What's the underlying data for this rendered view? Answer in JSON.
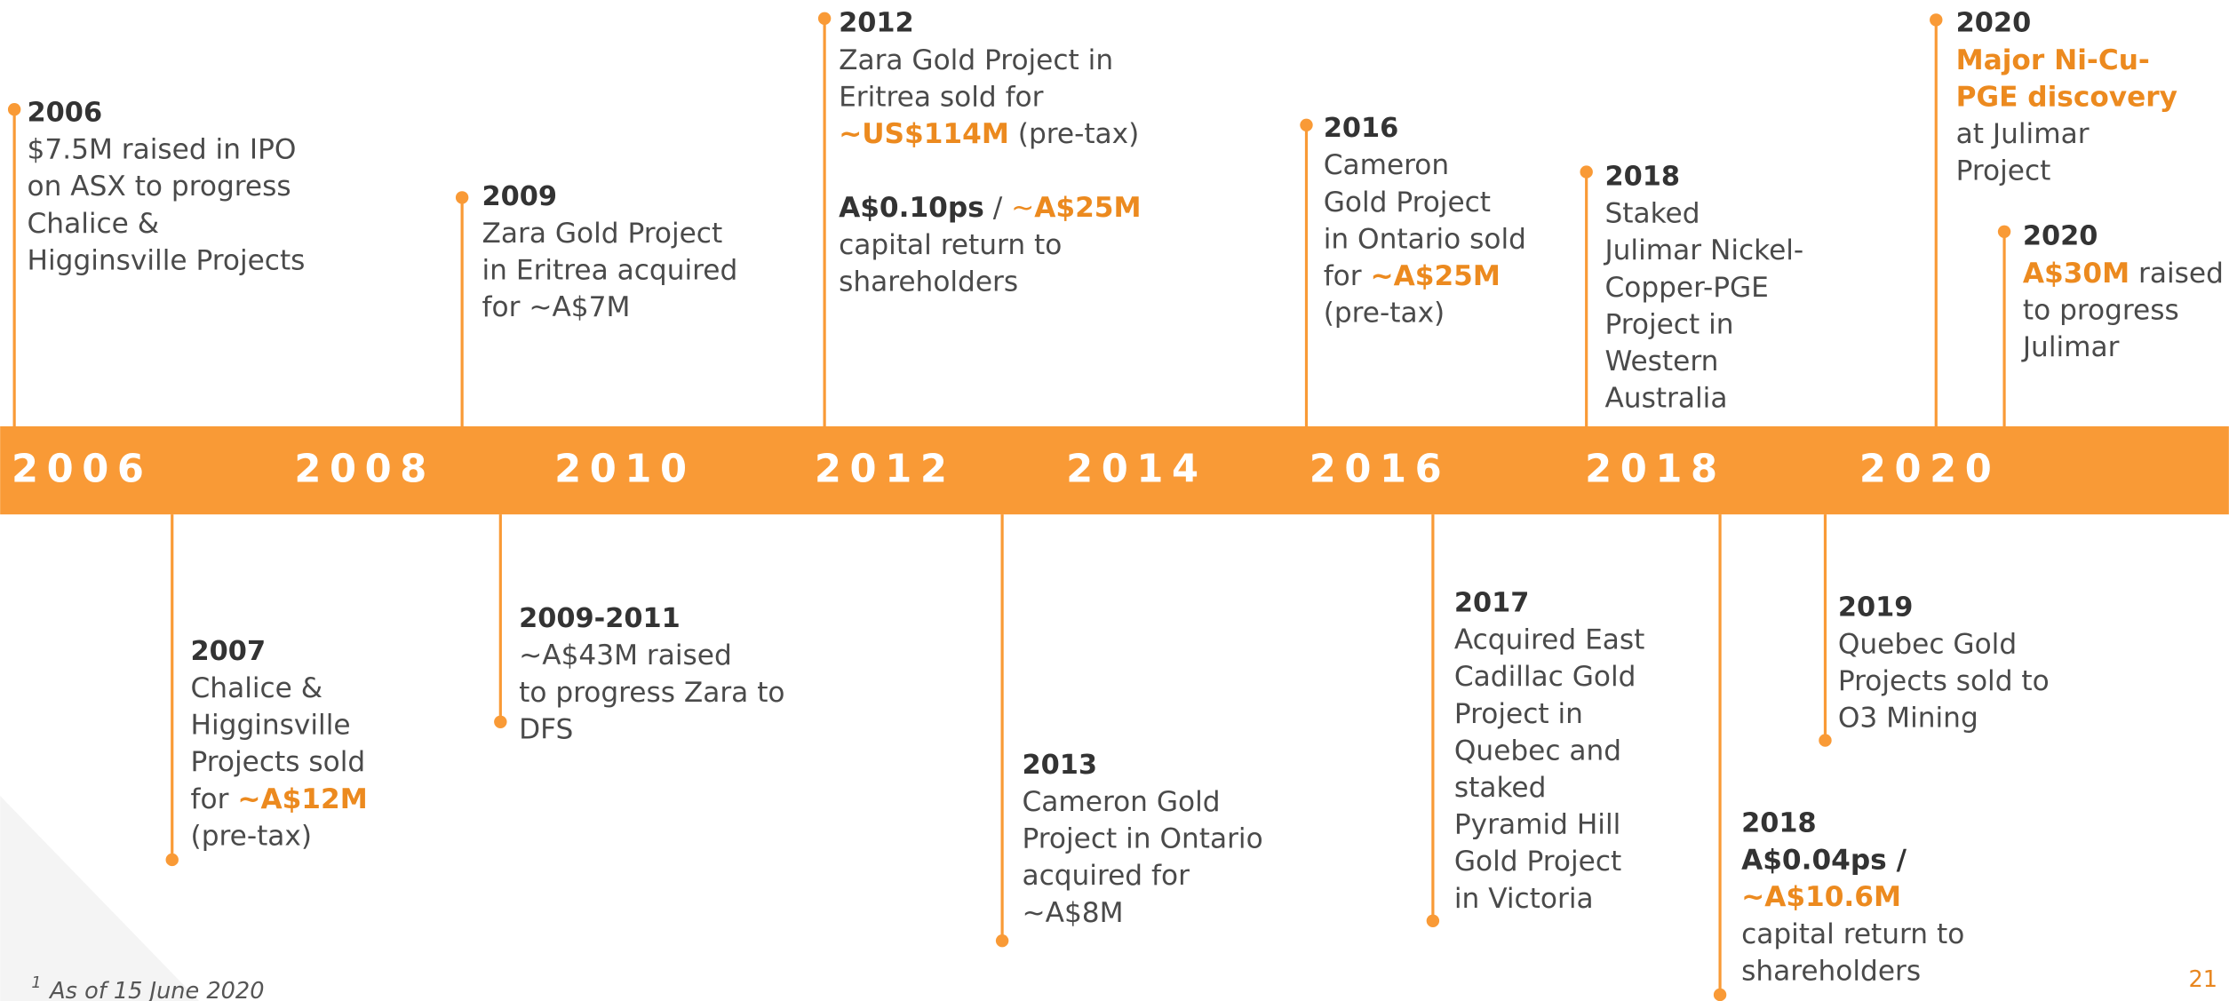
{
  "axis_labels": [
    "2006",
    "2008",
    "2010",
    "2012",
    "2014",
    "2016",
    "2018",
    "2020"
  ],
  "events": [
    {
      "year": "2006",
      "paragraphs": [
        [
          "$7.5M raised in IPO",
          "on ASX to progress",
          "Chalice &",
          "Higginsville Projects"
        ]
      ]
    },
    {
      "year": "2009",
      "paragraphs": [
        [
          "Zara Gold Project",
          "in Eritrea acquired",
          "for ~A$7M"
        ]
      ]
    },
    {
      "year": "2012",
      "paragraphs": [
        [
          "Zara Gold Project in",
          "Eritrea sold for",
          [
            {
              "text": "~US$114M",
              "style": "orange-bold"
            },
            {
              "text": " (pre-tax)",
              "style": "plain"
            }
          ]
        ],
        [
          [
            {
              "text": "A$0.10ps",
              "style": "bold"
            },
            {
              "text": " / ",
              "style": "plain"
            },
            {
              "text": "~",
              "style": "orange"
            },
            {
              "text": "A$25M",
              "style": "orange-bold"
            }
          ],
          "capital return to",
          "shareholders"
        ]
      ]
    },
    {
      "year": "2016",
      "paragraphs": [
        [
          "Cameron",
          "Gold Project",
          "in Ontario sold",
          [
            {
              "text": "for ",
              "style": "plain"
            },
            {
              "text": "~A$25M",
              "style": "orange-bold"
            }
          ],
          "(pre-tax)"
        ]
      ]
    },
    {
      "year": "2018",
      "paragraphs": [
        [
          "Staked",
          "Julimar Nickel-",
          "Copper-PGE",
          "Project in",
          "Western",
          "Australia"
        ]
      ]
    },
    {
      "year": "2020",
      "paragraphs": [
        [
          [
            {
              "text": "Major Ni-Cu-",
              "style": "orange-bold"
            }
          ],
          [
            {
              "text": "PGE discovery",
              "style": "orange-bold"
            }
          ],
          "at Julimar",
          "Project"
        ]
      ]
    },
    {
      "year": "2020",
      "paragraphs": [
        [
          [
            {
              "text": "A$30M",
              "style": "orange-bold"
            },
            {
              "text": " raised",
              "style": "plain"
            }
          ],
          "to progress",
          "Julimar"
        ]
      ]
    },
    {
      "year": "2007",
      "paragraphs": [
        [
          "Chalice &",
          "Higginsville",
          "Projects sold",
          [
            {
              "text": "for ",
              "style": "plain"
            },
            {
              "text": "~A$12M",
              "style": "orange-bold"
            }
          ],
          "(pre-tax)"
        ]
      ]
    },
    {
      "year": "2009-2011",
      "paragraphs": [
        [
          "~A$43M raised",
          "to progress Zara to",
          "DFS"
        ]
      ]
    },
    {
      "year": "2013",
      "paragraphs": [
        [
          "Cameron Gold",
          "Project in Ontario",
          "acquired for",
          "~A$8M"
        ]
      ]
    },
    {
      "year": "2017",
      "paragraphs": [
        [
          "Acquired East",
          "Cadillac Gold",
          "Project in",
          "Quebec and",
          "staked",
          "Pyramid Hill",
          "Gold Project",
          "in Victoria"
        ]
      ]
    },
    {
      "year": "2018",
      "paragraphs": [
        [
          [
            {
              "text": "A$0.04ps /",
              "style": "bold"
            }
          ],
          [
            {
              "text": "~A$10.6M",
              "style": "orange-bold"
            }
          ],
          "capital return to",
          "shareholders"
        ]
      ]
    },
    {
      "year": "2019",
      "paragraphs": [
        [
          "Quebec Gold",
          "Projects sold to",
          "O3 Mining"
        ]
      ]
    }
  ],
  "footnote": {
    "marker": "1",
    "text": "As of 15 June 2020"
  },
  "page_number": "21"
}
